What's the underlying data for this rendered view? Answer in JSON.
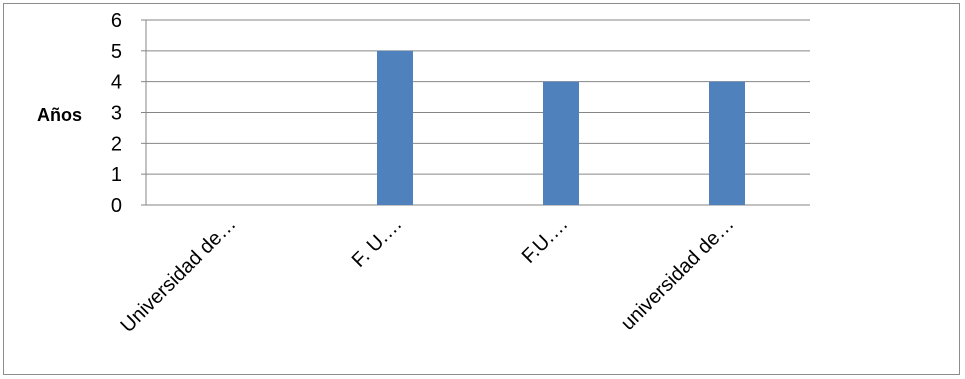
{
  "chart_data": {
    "type": "bar",
    "title": "",
    "xlabel": "",
    "ylabel": "Años",
    "categories": [
      "Universidad de…",
      "F. U.…",
      "F.U.…",
      "universidad de…"
    ],
    "values": [
      0,
      5,
      4,
      4
    ],
    "ylim": [
      0,
      6
    ],
    "yticks": [
      "0",
      "1",
      "2",
      "3",
      "4",
      "5",
      "6"
    ],
    "grid": true,
    "legend": "none",
    "bar_color": "#4f81bd",
    "grid_color": "#868686"
  }
}
